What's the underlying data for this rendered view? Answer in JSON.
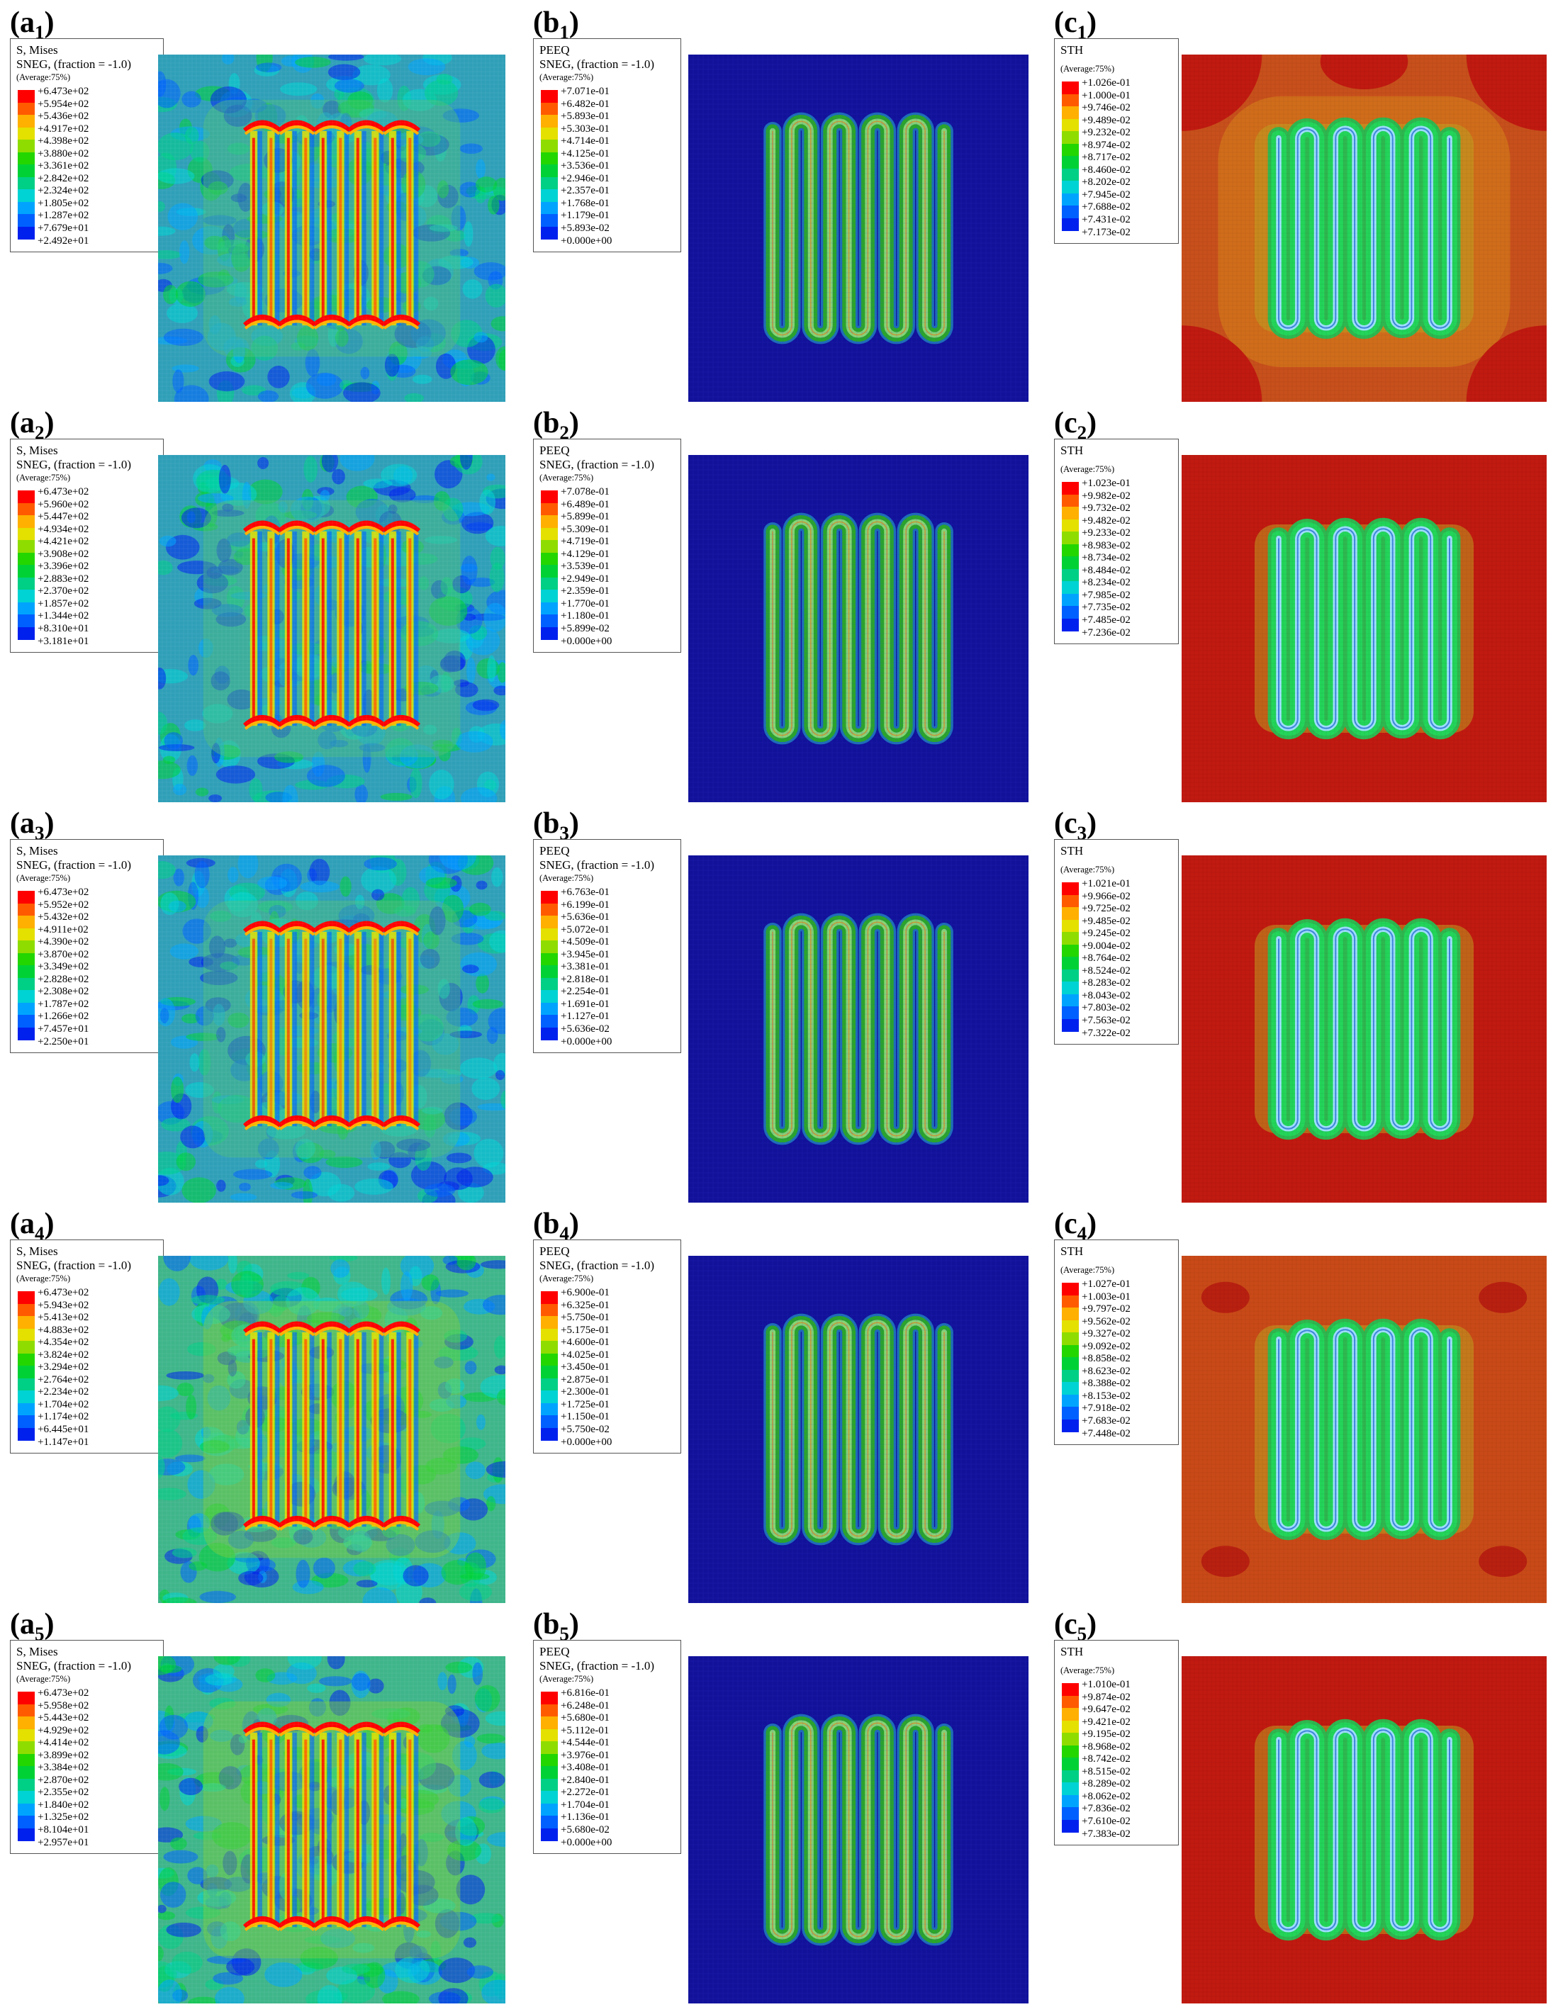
{
  "rows": [
    {
      "a": {
        "label_main": "a",
        "label_sub": "1",
        "title": "S, Mises",
        "subtitle": "SNEG, (fraction = -1.0)",
        "average": "(Average:75%)",
        "values": [
          "+6.473e+02",
          "+5.954e+02",
          "+5.436e+02",
          "+4.917e+02",
          "+4.398e+02",
          "+3.880e+02",
          "+3.361e+02",
          "+2.842e+02",
          "+2.324e+02",
          "+1.805e+02",
          "+1.287e+02",
          "+7.679e+01",
          "+2.492e+01"
        ]
      },
      "b": {
        "label_main": "b",
        "label_sub": "1",
        "title": "PEEQ",
        "subtitle": "SNEG, (fraction = -1.0)",
        "average": "(Average:75%)",
        "values": [
          "+7.071e-01",
          "+6.482e-01",
          "+5.893e-01",
          "+5.303e-01",
          "+4.714e-01",
          "+4.125e-01",
          "+3.536e-01",
          "+2.946e-01",
          "+2.357e-01",
          "+1.768e-01",
          "+1.179e-01",
          "+5.893e-02",
          "+0.000e+00"
        ]
      },
      "c": {
        "label_main": "c",
        "label_sub": "1",
        "title": "STH",
        "subtitle": "",
        "average": "(Average:75%)",
        "values": [
          "+1.026e-01",
          "+1.000e-01",
          "+9.746e-02",
          "+9.489e-02",
          "+9.232e-02",
          "+8.974e-02",
          "+8.717e-02",
          "+8.460e-02",
          "+8.202e-02",
          "+7.945e-02",
          "+7.688e-02",
          "+7.431e-02",
          "+7.173e-02"
        ]
      }
    },
    {
      "a": {
        "label_main": "a",
        "label_sub": "2",
        "title": "S, Mises",
        "subtitle": "SNEG, (fraction = -1.0)",
        "average": "(Average:75%)",
        "values": [
          "+6.473e+02",
          "+5.960e+02",
          "+5.447e+02",
          "+4.934e+02",
          "+4.421e+02",
          "+3.908e+02",
          "+3.396e+02",
          "+2.883e+02",
          "+2.370e+02",
          "+1.857e+02",
          "+1.344e+02",
          "+8.310e+01",
          "+3.181e+01"
        ]
      },
      "b": {
        "label_main": "b",
        "label_sub": "2",
        "title": "PEEQ",
        "subtitle": "SNEG, (fraction = -1.0)",
        "average": "(Average:75%)",
        "values": [
          "+7.078e-01",
          "+6.489e-01",
          "+5.899e-01",
          "+5.309e-01",
          "+4.719e-01",
          "+4.129e-01",
          "+3.539e-01",
          "+2.949e-01",
          "+2.359e-01",
          "+1.770e-01",
          "+1.180e-01",
          "+5.899e-02",
          "+0.000e+00"
        ]
      },
      "c": {
        "label_main": "c",
        "label_sub": "2",
        "title": "STH",
        "subtitle": "",
        "average": "(Average:75%)",
        "values": [
          "+1.023e-01",
          "+9.982e-02",
          "+9.732e-02",
          "+9.482e-02",
          "+9.233e-02",
          "+8.983e-02",
          "+8.734e-02",
          "+8.484e-02",
          "+8.234e-02",
          "+7.985e-02",
          "+7.735e-02",
          "+7.485e-02",
          "+7.236e-02"
        ]
      }
    },
    {
      "a": {
        "label_main": "a",
        "label_sub": "3",
        "title": "S, Mises",
        "subtitle": "SNEG, (fraction = -1.0)",
        "average": "(Average:75%)",
        "values": [
          "+6.473e+02",
          "+5.952e+02",
          "+5.432e+02",
          "+4.911e+02",
          "+4.390e+02",
          "+3.870e+02",
          "+3.349e+02",
          "+2.828e+02",
          "+2.308e+02",
          "+1.787e+02",
          "+1.266e+02",
          "+7.457e+01",
          "+2.250e+01"
        ]
      },
      "b": {
        "label_main": "b",
        "label_sub": "3",
        "title": "PEEQ",
        "subtitle": "SNEG, (fraction = -1.0)",
        "average": "(Average:75%)",
        "values": [
          "+6.763e-01",
          "+6.199e-01",
          "+5.636e-01",
          "+5.072e-01",
          "+4.509e-01",
          "+3.945e-01",
          "+3.381e-01",
          "+2.818e-01",
          "+2.254e-01",
          "+1.691e-01",
          "+1.127e-01",
          "+5.636e-02",
          "+0.000e+00"
        ]
      },
      "c": {
        "label_main": "c",
        "label_sub": "3",
        "title": "STH",
        "subtitle": "",
        "average": "(Average:75%)",
        "values": [
          "+1.021e-01",
          "+9.966e-02",
          "+9.725e-02",
          "+9.485e-02",
          "+9.245e-02",
          "+9.004e-02",
          "+8.764e-02",
          "+8.524e-02",
          "+8.283e-02",
          "+8.043e-02",
          "+7.803e-02",
          "+7.563e-02",
          "+7.322e-02"
        ]
      }
    },
    {
      "a": {
        "label_main": "a",
        "label_sub": "4",
        "title": "S, Mises",
        "subtitle": "SNEG, (fraction = -1.0)",
        "average": "(Average:75%)",
        "values": [
          "+6.473e+02",
          "+5.943e+02",
          "+5.413e+02",
          "+4.883e+02",
          "+4.354e+02",
          "+3.824e+02",
          "+3.294e+02",
          "+2.764e+02",
          "+2.234e+02",
          "+1.704e+02",
          "+1.174e+02",
          "+6.445e+01",
          "+1.147e+01"
        ]
      },
      "b": {
        "label_main": "b",
        "label_sub": "4",
        "title": "PEEQ",
        "subtitle": "SNEG, (fraction = -1.0)",
        "average": "(Average:75%)",
        "values": [
          "+6.900e-01",
          "+6.325e-01",
          "+5.750e-01",
          "+5.175e-01",
          "+4.600e-01",
          "+4.025e-01",
          "+3.450e-01",
          "+2.875e-01",
          "+2.300e-01",
          "+1.725e-01",
          "+1.150e-01",
          "+5.750e-02",
          "+0.000e+00"
        ]
      },
      "c": {
        "label_main": "c",
        "label_sub": "4",
        "title": "STH",
        "subtitle": "",
        "average": "(Average:75%)",
        "values": [
          "+1.027e-01",
          "+1.003e-01",
          "+9.797e-02",
          "+9.562e-02",
          "+9.327e-02",
          "+9.092e-02",
          "+8.858e-02",
          "+8.623e-02",
          "+8.388e-02",
          "+8.153e-02",
          "+7.918e-02",
          "+7.683e-02",
          "+7.448e-02"
        ]
      }
    },
    {
      "a": {
        "label_main": "a",
        "label_sub": "5",
        "title": "S, Mises",
        "subtitle": "SNEG, (fraction = -1.0)",
        "average": "(Average:75%)",
        "values": [
          "+6.473e+02",
          "+5.958e+02",
          "+5.443e+02",
          "+4.929e+02",
          "+4.414e+02",
          "+3.899e+02",
          "+3.384e+02",
          "+2.870e+02",
          "+2.355e+02",
          "+1.840e+02",
          "+1.325e+02",
          "+8.104e+01",
          "+2.957e+01"
        ]
      },
      "b": {
        "label_main": "b",
        "label_sub": "5",
        "title": "PEEQ",
        "subtitle": "SNEG, (fraction = -1.0)",
        "average": "(Average:75%)",
        "values": [
          "+6.816e-01",
          "+6.248e-01",
          "+5.680e-01",
          "+5.112e-01",
          "+4.544e-01",
          "+3.976e-01",
          "+3.408e-01",
          "+2.840e-01",
          "+2.272e-01",
          "+1.704e-01",
          "+1.136e-01",
          "+5.680e-02",
          "+0.000e+00"
        ]
      },
      "c": {
        "label_main": "c",
        "label_sub": "5",
        "title": "STH",
        "subtitle": "",
        "average": "(Average:75%)",
        "values": [
          "+1.010e-01",
          "+9.874e-02",
          "+9.647e-02",
          "+9.421e-02",
          "+9.195e-02",
          "+8.968e-02",
          "+8.742e-02",
          "+8.515e-02",
          "+8.289e-02",
          "+8.062e-02",
          "+7.836e-02",
          "+7.610e-02",
          "+7.383e-02"
        ]
      }
    }
  ],
  "colormap": [
    "#ff0000",
    "#ff5a00",
    "#ffb000",
    "#e4e000",
    "#8fdd00",
    "#23d600",
    "#00d235",
    "#00cf86",
    "#00d3d3",
    "#00a4ff",
    "#0060ff",
    "#0020ee"
  ],
  "colors": {
    "peeq_bg": "#11119a",
    "mises_bg": "#2fb0a6",
    "sth_bg": "#c11a10",
    "sth_bg_alt": "#c94a18",
    "channel": "#2aa62a",
    "channel_edge": "#9fe08a"
  },
  "field_states": {
    "a": [
      "mid",
      "mid",
      "low",
      "high",
      "high"
    ],
    "c": [
      "orange-lobes",
      "uniform-red",
      "uniform-red",
      "orange-corners",
      "uniform-red"
    ]
  }
}
